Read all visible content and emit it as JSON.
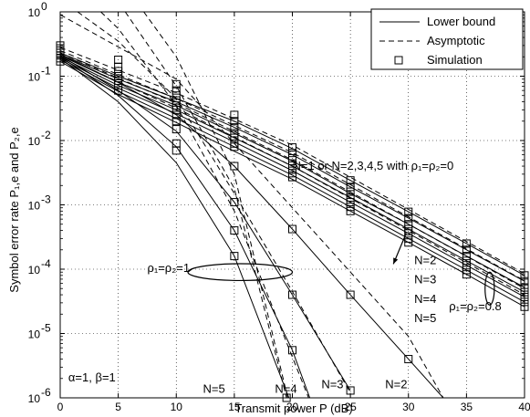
{
  "chart_data": {
    "type": "line",
    "xlabel": "Transmit power P (dB)",
    "ylabel": "Symbol error rate   P₁,e and P₂,e",
    "xlim": [
      0,
      40
    ],
    "ylim": [
      1e-06,
      1
    ],
    "yscale": "log",
    "grid": true,
    "x_ticks": [
      0,
      5,
      10,
      15,
      20,
      25,
      30,
      35,
      40
    ],
    "y_ticks": [
      1e-06,
      1e-05,
      0.0001,
      0.001,
      0.01,
      0.1,
      1
    ],
    "y_tick_labels": [
      "10^-6",
      "10^-5",
      "10^-4",
      "10^-3",
      "10^-2",
      "10^-1",
      "10^0"
    ],
    "legend": {
      "placement": "top-right",
      "entries": [
        {
          "label": "Lower bound",
          "style": "solid"
        },
        {
          "label": "Asymptotic",
          "style": "dashed"
        },
        {
          "label": "Simulation",
          "style": "square-marker"
        }
      ]
    },
    "annotations": [
      {
        "text": "N=1 or N=2,3,4,5 with ρ₁=ρ₂=0",
        "x": 20,
        "y": 0.0035
      },
      {
        "text": "ρ₁=ρ₂=1",
        "x": 7.5,
        "y": 9e-05
      },
      {
        "text": "ρ₁=ρ₂=0.8",
        "x": 33.5,
        "y": 2.3e-05
      },
      {
        "text": "N=2",
        "x": 30.5,
        "y": 0.00012
      },
      {
        "text": "N=3",
        "x": 30.5,
        "y": 6e-05
      },
      {
        "text": "N=4",
        "x": 30.5,
        "y": 3e-05
      },
      {
        "text": "N=5",
        "x": 30.5,
        "y": 1.5e-05
      },
      {
        "text": "N=5",
        "x": 12.3,
        "y": 1.2e-06
      },
      {
        "text": "N=4",
        "x": 18.5,
        "y": 1.2e-06
      },
      {
        "text": "N=3",
        "x": 22.5,
        "y": 1.4e-06
      },
      {
        "text": "N=2",
        "x": 28,
        "y": 1.4e-06
      },
      {
        "text": "α=1, β=1",
        "x": 0.7,
        "y": 1.8e-06
      }
    ],
    "series": [
      {
        "style": "solid",
        "x": [
          0,
          5,
          10,
          15,
          20,
          25,
          30,
          35,
          40
        ],
        "values": [
          0.23,
          0.1,
          0.045,
          0.02,
          0.0075,
          0.0024,
          0.00078,
          0.00025,
          8e-05
        ]
      },
      {
        "style": "solid",
        "x": [
          0,
          5,
          10,
          15,
          20,
          25,
          30,
          35,
          40
        ],
        "values": [
          0.22,
          0.09,
          0.04,
          0.016,
          0.006,
          0.0019,
          0.00062,
          0.0002,
          6.5e-05
        ]
      },
      {
        "style": "solid",
        "x": [
          0,
          5,
          10,
          15,
          20,
          25,
          30,
          35,
          40
        ],
        "values": [
          0.21,
          0.08,
          0.035,
          0.013,
          0.0048,
          0.0015,
          0.0005,
          0.00016,
          5.2e-05
        ]
      },
      {
        "style": "solid",
        "x": [
          0,
          5,
          10,
          15,
          20,
          25,
          30,
          35,
          40
        ],
        "values": [
          0.2,
          0.072,
          0.03,
          0.011,
          0.004,
          0.0013,
          0.00042,
          0.000135,
          4.4e-05
        ]
      },
      {
        "style": "solid",
        "x": [
          0,
          5,
          10,
          15,
          20,
          25,
          30,
          35,
          40
        ],
        "values": [
          0.19,
          0.065,
          0.026,
          0.0095,
          0.0034,
          0.0011,
          0.00036,
          0.000115,
          3.7e-05
        ]
      },
      {
        "style": "solid",
        "x": [
          0,
          5,
          10,
          15,
          20,
          25,
          30,
          35,
          40
        ],
        "values": [
          0.18,
          0.058,
          0.022,
          0.008,
          0.0029,
          0.00093,
          0.0003,
          9.7e-05,
          3.1e-05
        ]
      },
      {
        "style": "solid",
        "x": [
          0,
          5,
          10,
          15,
          20,
          25,
          30,
          35,
          40
        ],
        "values": [
          0.17,
          0.052,
          0.019,
          0.0068,
          0.0025,
          0.0008,
          0.00026,
          8.3e-05,
          2.6e-05
        ]
      },
      {
        "style": "solid",
        "x": [
          0,
          5,
          10,
          15,
          20,
          25,
          30,
          33
        ],
        "values": [
          0.22,
          0.08,
          0.025,
          0.004,
          0.00042,
          4e-05,
          4e-06,
          1e-06
        ]
      },
      {
        "style": "solid",
        "x": [
          0,
          5,
          10,
          15,
          20,
          25
        ],
        "values": [
          0.21,
          0.06,
          0.014,
          0.0011,
          4e-05,
          1.3e-06
        ]
      },
      {
        "style": "solid",
        "x": [
          0,
          5,
          10,
          15,
          20,
          21.5
        ],
        "values": [
          0.2,
          0.05,
          0.008,
          0.0004,
          5.5e-06,
          1e-06
        ]
      },
      {
        "style": "solid",
        "x": [
          0,
          5,
          10,
          15,
          19.7
        ],
        "values": [
          0.19,
          0.04,
          0.0045,
          0.00016,
          1e-06
        ]
      },
      {
        "style": "dashed",
        "x": [
          0,
          10,
          20,
          30,
          40
        ],
        "values": [
          0.28,
          0.055,
          0.0085,
          0.00085,
          8.5e-05
        ]
      },
      {
        "style": "dashed",
        "x": [
          0,
          10,
          20,
          30,
          40
        ],
        "values": [
          0.25,
          0.045,
          0.0065,
          0.00065,
          6.6e-05
        ]
      },
      {
        "style": "dashed",
        "x": [
          0,
          10,
          20,
          30,
          40
        ],
        "values": [
          0.23,
          0.038,
          0.005,
          0.0005,
          5e-05
        ]
      },
      {
        "style": "dashed",
        "x": [
          0,
          10,
          20,
          30,
          40
        ],
        "values": [
          0.21,
          0.032,
          0.004,
          0.0004,
          4e-05
        ]
      },
      {
        "style": "dashed",
        "x": [
          0,
          10,
          20,
          30,
          33
        ],
        "values": [
          0.9,
          0.09,
          0.0009,
          9e-06,
          1e-06
        ]
      },
      {
        "style": "dashed",
        "x": [
          1.5,
          5,
          10,
          15,
          20,
          25
        ],
        "values": [
          1.0,
          0.35,
          0.045,
          0.0015,
          4.5e-05,
          1.2e-06
        ]
      },
      {
        "style": "dashed",
        "x": [
          3.5,
          5,
          10,
          15,
          21.4
        ],
        "values": [
          1.0,
          0.55,
          0.035,
          0.0008,
          1e-06
        ]
      },
      {
        "style": "dashed",
        "x": [
          5.6,
          10,
          15,
          19.5
        ],
        "values": [
          1.0,
          0.07,
          0.0018,
          1e-06
        ]
      },
      {
        "style": "dashed",
        "x": [
          7.2,
          10,
          15,
          19.6
        ],
        "values": [
          1.0,
          0.2,
          0.003,
          1e-06
        ]
      }
    ],
    "simulation_points": {
      "x": [
        0,
        0,
        0,
        0,
        0,
        0,
        0,
        5,
        5,
        5,
        5,
        5,
        5,
        5,
        10,
        10,
        10,
        10,
        10,
        10,
        10,
        15,
        15,
        15,
        15,
        15,
        15,
        15,
        20,
        20,
        20,
        20,
        20,
        20,
        20,
        25,
        25,
        25,
        25,
        25,
        25,
        25,
        30,
        30,
        30,
        30,
        30,
        30,
        30,
        35,
        35,
        35,
        35,
        35,
        35,
        35,
        40,
        40,
        40,
        40,
        40,
        40,
        40,
        10,
        15,
        20,
        25,
        30,
        10,
        15,
        20,
        25,
        10,
        15,
        20,
        10,
        15,
        19.5
      ],
      "values": [
        0.3,
        0.27,
        0.25,
        0.23,
        0.21,
        0.19,
        0.17,
        0.18,
        0.14,
        0.12,
        0.1,
        0.085,
        0.072,
        0.06,
        0.075,
        0.06,
        0.05,
        0.042,
        0.035,
        0.03,
        0.025,
        0.025,
        0.02,
        0.016,
        0.013,
        0.011,
        0.009,
        0.008,
        0.0078,
        0.0064,
        0.0053,
        0.0044,
        0.0037,
        0.0031,
        0.0027,
        0.0024,
        0.0019,
        0.0016,
        0.0013,
        0.0011,
        0.00093,
        0.0008,
        0.00078,
        0.00062,
        0.0005,
        0.00042,
        0.00036,
        0.0003,
        0.00026,
        0.00025,
        0.0002,
        0.00016,
        0.000135,
        0.000115,
        9.7e-05,
        8.3e-05,
        8e-05,
        6.5e-05,
        5.2e-05,
        4.4e-05,
        3.7e-05,
        3.1e-05,
        2.6e-05,
        0.02,
        0.004,
        0.00042,
        4e-05,
        4e-06,
        0.015,
        0.0011,
        4e-05,
        1.3e-06,
        0.009,
        0.0004,
        5.5e-06,
        0.007,
        0.00016,
        1e-06
      ]
    },
    "ellipses": [
      {
        "cx": 15.5,
        "cy": 9e-05,
        "rx_data": 4.5,
        "ry_factor": 1.35
      },
      {
        "cx": 37.0,
        "cy": 5e-05,
        "rx_data": 0.4,
        "ry_factor": 1.8
      }
    ],
    "arrow": {
      "x1": 29.8,
      "y1": 0.00036,
      "x2": 28.7,
      "y2": 0.00012
    }
  }
}
